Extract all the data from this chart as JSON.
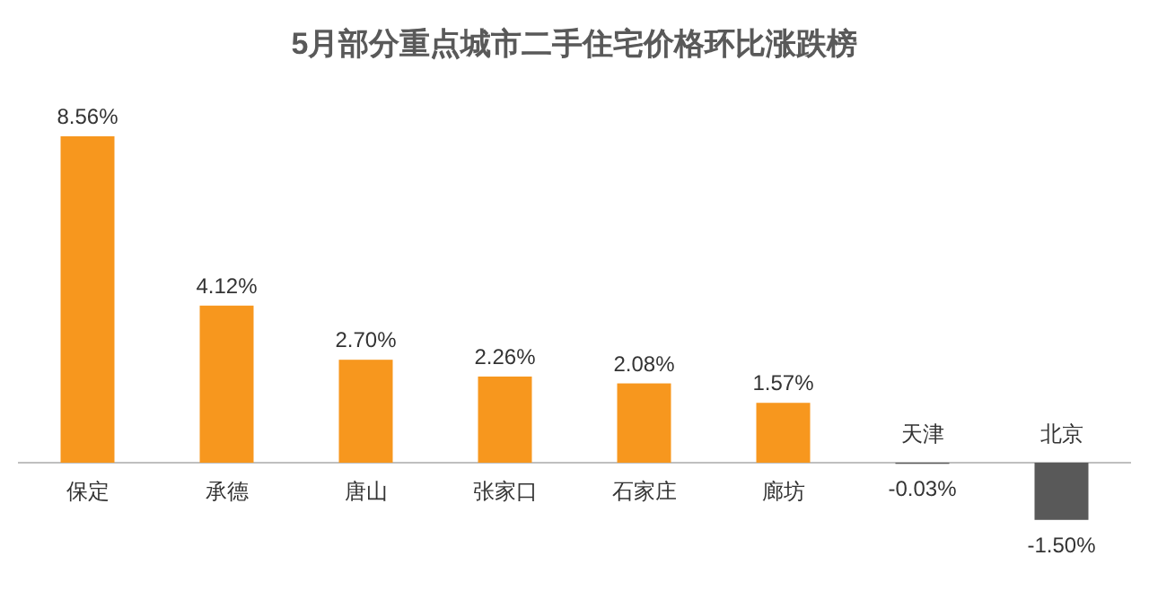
{
  "chart_data": {
    "type": "bar",
    "title": "5月部分重点城市二手住宅价格环比涨跌榜",
    "categories": [
      "保定",
      "承德",
      "唐山",
      "张家口",
      "石家庄",
      "廊坊",
      "天津",
      "北京"
    ],
    "values": [
      8.56,
      4.12,
      2.7,
      2.26,
      2.08,
      1.57,
      -0.03,
      -1.5
    ],
    "colors": [
      "#f7971e",
      "#f7971e",
      "#f7971e",
      "#f7971e",
      "#f7971e",
      "#f7971e",
      "#595959",
      "#595959"
    ],
    "value_labels": [
      "8.56%",
      "4.12%",
      "2.70%",
      "2.26%",
      "2.08%",
      "1.57%",
      "-0.03%",
      "-1.50%"
    ]
  }
}
